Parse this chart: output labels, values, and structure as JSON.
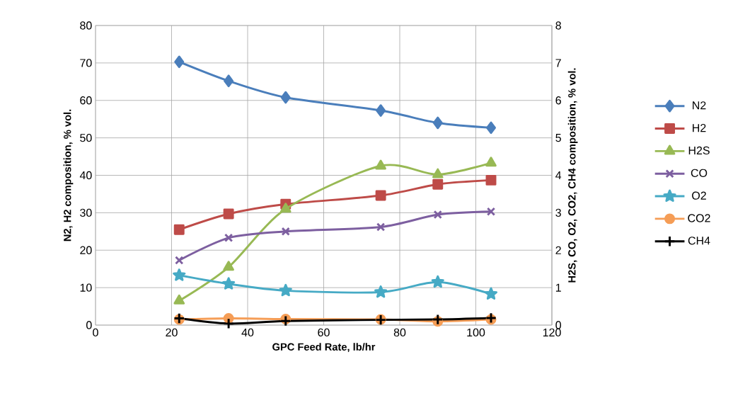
{
  "chart_data": {
    "type": "line",
    "xlabel": "GPC Feed Rate, lb/hr",
    "ylabel": "N2, H2 composition, % vol.",
    "y2label": "H2S, CO, O2, CO2, CH4 composition, % vol.",
    "x": [
      22,
      35,
      50,
      75,
      90,
      104
    ],
    "xlim": [
      0,
      120
    ],
    "xticks": [
      0,
      20,
      40,
      60,
      80,
      100,
      120
    ],
    "ylim": [
      0,
      80
    ],
    "yticks": [
      0,
      10,
      20,
      30,
      40,
      50,
      60,
      70,
      80
    ],
    "y2lim": [
      0,
      8
    ],
    "y2ticks": [
      0,
      1,
      2,
      3,
      4,
      5,
      6,
      7,
      8
    ],
    "grid": true,
    "legend": "right",
    "series": [
      {
        "name": "N2",
        "color": "#4a7ebb",
        "marker": "diamond",
        "values": [
          70.3,
          65.2,
          60.8,
          57.3,
          54.0,
          52.7
        ]
      },
      {
        "name": "H2",
        "color": "#be4b48",
        "marker": "square",
        "values": [
          25.5,
          29.7,
          32.3,
          34.6,
          37.6,
          38.7
        ]
      },
      {
        "name": "H2S",
        "color": "#98b954",
        "marker": "triangle",
        "axis": "y2",
        "values": [
          0.65,
          1.55,
          3.1,
          4.25,
          4.02,
          4.33
        ]
      },
      {
        "name": "CO",
        "color": "#7d5fa0",
        "marker": "cross",
        "axis": "y2",
        "values": [
          1.73,
          2.33,
          2.5,
          2.62,
          2.95,
          3.03
        ]
      },
      {
        "name": "O2",
        "color": "#46aac5",
        "marker": "star",
        "axis": "y2",
        "values": [
          1.33,
          1.1,
          0.92,
          0.88,
          1.15,
          0.83
        ]
      },
      {
        "name": "CO2",
        "color": "#f59d56",
        "marker": "circle",
        "axis": "y2",
        "values": [
          0.15,
          0.18,
          0.16,
          0.15,
          0.1,
          0.15
        ]
      },
      {
        "name": "CH4",
        "color": "#000000",
        "marker": "plus",
        "axis": "y2",
        "values": [
          0.18,
          0.04,
          0.11,
          0.14,
          0.15,
          0.19
        ]
      }
    ]
  }
}
